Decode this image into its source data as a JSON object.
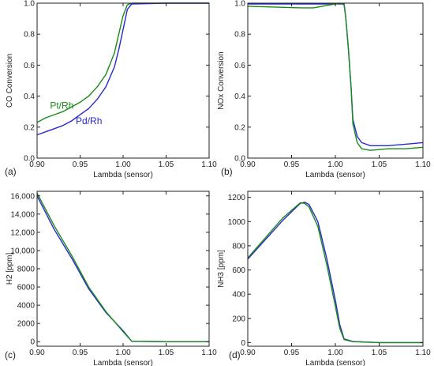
{
  "chart_data": [
    {
      "type": "line",
      "panel_label": "(a)",
      "xlabel": "Lambda (sensor)",
      "ylabel": "CO Conversion",
      "xlim": [
        0.9,
        1.1
      ],
      "ylim": [
        0.0,
        1.0
      ],
      "xticks": [
        "0.90",
        "0.95",
        "1.00",
        "1.05",
        "1.10"
      ],
      "yticks": [
        "0.0",
        "0.2",
        "0.4",
        "0.6",
        "0.8",
        "1.0"
      ],
      "annotations": [
        {
          "text": "Pt/Rh",
          "color": "#1a8a1a",
          "at": [
            0.915,
            0.32
          ]
        },
        {
          "text": "Pd/Rh",
          "color": "#2a2acc",
          "at": [
            0.945,
            0.22
          ]
        }
      ],
      "series": [
        {
          "name": "Pt/Rh",
          "color": "#1a8a1a",
          "x": [
            0.9,
            0.91,
            0.92,
            0.93,
            0.94,
            0.95,
            0.96,
            0.97,
            0.98,
            0.99,
            0.995,
            1.0,
            1.005,
            1.01,
            1.05,
            1.1
          ],
          "y": [
            0.23,
            0.26,
            0.28,
            0.3,
            0.33,
            0.36,
            0.4,
            0.46,
            0.54,
            0.68,
            0.8,
            0.92,
            0.99,
            1.0,
            1.0,
            1.0
          ]
        },
        {
          "name": "Pd/Rh",
          "color": "#2a2acc",
          "x": [
            0.9,
            0.91,
            0.92,
            0.93,
            0.94,
            0.95,
            0.96,
            0.97,
            0.98,
            0.99,
            0.995,
            1.0,
            1.005,
            1.01,
            1.05,
            1.1
          ],
          "y": [
            0.15,
            0.17,
            0.19,
            0.21,
            0.24,
            0.28,
            0.32,
            0.38,
            0.46,
            0.59,
            0.7,
            0.83,
            0.96,
            0.995,
            1.0,
            1.0
          ]
        }
      ]
    },
    {
      "type": "line",
      "panel_label": "(b)",
      "xlabel": "Lambda (sensor)",
      "ylabel": "NOx Conversion",
      "xlim": [
        0.9,
        1.1
      ],
      "ylim": [
        0.0,
        1.0
      ],
      "xticks": [
        "0.90",
        "0.95",
        "1.00",
        "1.05",
        "1.10"
      ],
      "yticks": [
        "0.0",
        "0.2",
        "0.4",
        "0.6",
        "0.8",
        "1.0"
      ],
      "series": [
        {
          "name": "Pd/Rh",
          "color": "#2a2acc",
          "x": [
            0.9,
            0.95,
            1.0,
            1.01,
            1.012,
            1.015,
            1.018,
            1.02,
            1.025,
            1.03,
            1.04,
            1.06,
            1.08,
            1.1
          ],
          "y": [
            0.995,
            0.995,
            0.995,
            0.995,
            0.9,
            0.7,
            0.45,
            0.25,
            0.14,
            0.1,
            0.08,
            0.08,
            0.09,
            0.1
          ]
        },
        {
          "name": "Pt/Rh",
          "color": "#1a8a1a",
          "x": [
            0.9,
            0.93,
            0.96,
            0.975,
            0.99,
            1.0,
            1.005,
            1.01,
            1.012,
            1.015,
            1.018,
            1.02,
            1.025,
            1.03,
            1.04,
            1.06,
            1.08,
            1.1
          ],
          "y": [
            0.98,
            0.975,
            0.97,
            0.97,
            0.985,
            0.995,
            1.0,
            0.99,
            0.9,
            0.7,
            0.45,
            0.22,
            0.1,
            0.06,
            0.05,
            0.06,
            0.06,
            0.07
          ]
        }
      ]
    },
    {
      "type": "line",
      "panel_label": "(c)",
      "xlabel": "Lambda (sensor)",
      "ylabel": "H2 [ppm]",
      "xlim": [
        0.9,
        1.1
      ],
      "ylim": [
        -500,
        16500
      ],
      "xticks": [
        "0.90",
        "0.95",
        "1.00",
        "1.05",
        "1.10"
      ],
      "yticks": [
        "0",
        "2000",
        "4000",
        "6000",
        "8000",
        "10,000",
        "12,000",
        "14,000",
        "16,000"
      ],
      "series": [
        {
          "name": "Pd/Rh",
          "color": "#2a2acc",
          "x": [
            0.9,
            0.92,
            0.94,
            0.96,
            0.98,
            1.0,
            1.01,
            1.05,
            1.1
          ],
          "y": [
            16000,
            12300,
            9200,
            5800,
            3200,
            1200,
            50,
            0,
            0
          ]
        },
        {
          "name": "Pt/Rh",
          "color": "#1a8a1a",
          "x": [
            0.9,
            0.92,
            0.94,
            0.96,
            0.98,
            1.0,
            1.01,
            1.05,
            1.1
          ],
          "y": [
            16300,
            12700,
            9500,
            6000,
            3300,
            1100,
            50,
            0,
            0
          ]
        }
      ]
    },
    {
      "type": "line",
      "panel_label": "(d)",
      "xlabel": "Lambda (sensor)",
      "ylabel": "NH3 [ppm]",
      "xlim": [
        0.9,
        1.1
      ],
      "ylim": [
        -30,
        1250
      ],
      "xticks": [
        "0.90",
        "0.95",
        "1.00",
        "1.05",
        "1.10"
      ],
      "yticks": [
        "0",
        "200",
        "400",
        "600",
        "800",
        "1000",
        "1200"
      ],
      "series": [
        {
          "name": "Pd/Rh",
          "color": "#2a2acc",
          "x": [
            0.9,
            0.92,
            0.94,
            0.96,
            0.965,
            0.97,
            0.98,
            0.99,
            1.0,
            1.005,
            1.01,
            1.02,
            1.05,
            1.1
          ],
          "y": [
            690,
            850,
            1010,
            1150,
            1160,
            1140,
            1000,
            700,
            350,
            150,
            30,
            10,
            0,
            0
          ]
        },
        {
          "name": "Pt/Rh",
          "color": "#1a8a1a",
          "x": [
            0.9,
            0.92,
            0.94,
            0.96,
            0.965,
            0.97,
            0.98,
            0.99,
            1.0,
            1.005,
            1.01,
            1.02,
            1.05,
            1.1
          ],
          "y": [
            700,
            865,
            1030,
            1155,
            1150,
            1120,
            960,
            650,
            300,
            120,
            25,
            8,
            0,
            0
          ]
        }
      ]
    }
  ]
}
